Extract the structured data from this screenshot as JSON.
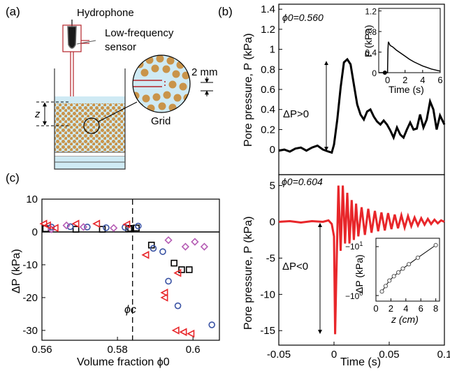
{
  "panel_labels": {
    "a": "(a)",
    "b": "(b)",
    "c": "(c)"
  },
  "schematic": {
    "hydrophone_label": "Hydrophone",
    "sensor_label_line1": "Low-frequency",
    "sensor_label_line2": "sensor",
    "grid_label": "Grid",
    "scale_label": "2 mm",
    "depth_label": "z"
  },
  "colors": {
    "black_trace": "#000000",
    "red_trace": "#e8262a",
    "grain": "#c9944a",
    "water": "#cfeaf4",
    "sensor_red": "#b3232a",
    "circle_blue": "#3a53a4",
    "diamond_purple": "#b55cb4",
    "triangle_red": "#e8262a"
  },
  "chart_data": [
    {
      "type": "line",
      "panel": "b-top",
      "annotation_phi": "ϕ0=0.560",
      "annotation_dp": "ΔP>0",
      "ylabel": "Pore pressure, P (kPa)",
      "ylim": [
        -0.25,
        1.45
      ],
      "xlim": [
        -0.05,
        0.1
      ],
      "yticks": [
        "1.4",
        "1.2",
        "1",
        "0.8",
        "0.6",
        "0.4",
        "0.2",
        "0"
      ],
      "series": [
        {
          "x": [
            -0.05,
            -0.045,
            -0.04,
            -0.035,
            -0.03,
            -0.025,
            -0.02,
            -0.015,
            -0.01,
            -0.005,
            -0.002,
            0.0,
            0.003,
            0.006,
            0.009,
            0.012,
            0.015,
            0.018,
            0.021,
            0.024,
            0.027,
            0.03,
            0.033,
            0.036,
            0.039,
            0.042,
            0.045,
            0.048,
            0.051,
            0.054,
            0.057,
            0.06,
            0.063,
            0.066,
            0.069,
            0.072,
            0.075,
            0.078,
            0.081,
            0.084,
            0.087,
            0.09,
            0.093,
            0.096,
            0.1
          ],
          "y": [
            -0.01,
            0.0,
            -0.02,
            0.01,
            0.02,
            -0.01,
            0.02,
            0.04,
            0.0,
            -0.02,
            -0.03,
            0.05,
            0.3,
            0.62,
            0.87,
            0.9,
            0.85,
            0.65,
            0.45,
            0.35,
            0.3,
            0.38,
            0.4,
            0.33,
            0.28,
            0.25,
            0.29,
            0.25,
            0.19,
            0.12,
            0.22,
            0.15,
            0.12,
            0.2,
            0.27,
            0.2,
            0.21,
            0.35,
            0.22,
            0.3,
            0.48,
            0.4,
            0.2,
            0.34,
            0.25
          ]
        }
      ],
      "inset": {
        "xlabel": "Time (s)",
        "ylabel": "P (kPa)",
        "xlim": [
          -1,
          6
        ],
        "ylim": [
          0,
          1.25
        ],
        "xticks": [
          "0",
          "2",
          "4",
          "6"
        ],
        "yticks": [
          "1.2",
          "0.8",
          "0.4",
          "0"
        ],
        "x": [
          -1,
          -0.5,
          0,
          0.05,
          0.1,
          0.3,
          0.6,
          1.0,
          1.5,
          2.0,
          2.5,
          3.0,
          3.5,
          4.0,
          4.5,
          5.0,
          5.5,
          6.0
        ],
        "y": [
          0.0,
          0.0,
          0.0,
          0.45,
          0.6,
          0.53,
          0.5,
          0.44,
          0.38,
          0.32,
          0.26,
          0.21,
          0.17,
          0.13,
          0.1,
          0.07,
          0.05,
          0.03
        ]
      }
    },
    {
      "type": "line",
      "panel": "b-bottom",
      "annotation_phi": "ϕ0=0.604",
      "annotation_dp": "ΔP<0",
      "ylabel": "Pore pressure, P (kPa)",
      "xlabel": "Time (s)",
      "ylim": [
        -17,
        6.5
      ],
      "xlim": [
        -0.05,
        0.1
      ],
      "yticks": [
        "5",
        "0",
        "-5",
        "-10",
        "-15"
      ],
      "xticks": [
        "-0.05",
        "0",
        "0.05",
        "0.1"
      ],
      "series": [
        {
          "x": [
            -0.05,
            -0.04,
            -0.03,
            -0.02,
            -0.01,
            -0.005,
            -0.002,
            0.0,
            0.001,
            0.002,
            0.004,
            0.006,
            0.008,
            0.01,
            0.012,
            0.014,
            0.016,
            0.018,
            0.02,
            0.022,
            0.025,
            0.028,
            0.031,
            0.034,
            0.037,
            0.04,
            0.043,
            0.046,
            0.049,
            0.052,
            0.055,
            0.058,
            0.061,
            0.064,
            0.067,
            0.07,
            0.073,
            0.076,
            0.079,
            0.082,
            0.085,
            0.088,
            0.091,
            0.094,
            0.097,
            0.1
          ],
          "y": [
            0.0,
            0.1,
            -0.1,
            0.1,
            0.0,
            0.2,
            -0.3,
            -2.0,
            -15.5,
            -8.0,
            5.0,
            -4.0,
            5.0,
            -3.0,
            4.0,
            -3.0,
            3.0,
            -2.5,
            2.5,
            -2.0,
            2.0,
            -1.8,
            1.8,
            -1.5,
            1.5,
            -1.3,
            1.3,
            -1.2,
            1.2,
            -1.0,
            1.0,
            -0.9,
            0.9,
            -0.8,
            0.8,
            -0.6,
            0.6,
            -0.5,
            0.5,
            -0.4,
            0.4,
            -0.3,
            0.3,
            -0.2,
            0.2,
            0.0
          ]
        }
      ],
      "inset": {
        "xlabel": "z (cm)",
        "ylabel": "ΔP (kPa)",
        "xticks": [
          "0",
          "2",
          "4",
          "6",
          "8"
        ],
        "ytick_top": "−10",
        "ytick_top_sup": "1",
        "ytick_bottom": "−10",
        "ytick_bottom_sup": "0",
        "xlim": [
          0,
          8.5
        ],
        "points": [
          [
            0.8,
            0.1
          ],
          [
            1.3,
            0.2
          ],
          [
            1.8,
            0.3
          ],
          [
            2.4,
            0.38
          ],
          [
            3.0,
            0.45
          ],
          [
            3.6,
            0.52
          ],
          [
            4.4,
            0.6
          ],
          [
            5.6,
            0.72
          ],
          [
            8.0,
            0.95
          ]
        ]
      }
    },
    {
      "type": "scatter",
      "panel": "c",
      "ylabel": "ΔP (kPa)",
      "xlabel": "Volume fraction ϕ0",
      "xlim": [
        0.56,
        0.607
      ],
      "ylim": [
        -33,
        10
      ],
      "xticks": [
        "0.56",
        "0.58",
        "0.6"
      ],
      "yticks": [
        "10",
        "0",
        "-10",
        "-20",
        "-30"
      ],
      "phi_c_label": "ϕc",
      "phi_c": 0.584,
      "series": [
        {
          "marker": "square",
          "points": [
            [
              0.561,
              1.0
            ],
            [
              0.569,
              0.8
            ],
            [
              0.576,
              0.8
            ],
            [
              0.583,
              0.9
            ],
            [
              0.5835,
              1.1
            ],
            [
              0.585,
              1.2
            ],
            [
              0.589,
              -4.0
            ],
            [
              0.595,
              -9.5
            ],
            [
              0.597,
              -11.5
            ],
            [
              0.599,
              -11.5
            ]
          ]
        },
        {
          "marker": "circle",
          "points": [
            [
              0.5625,
              1.5
            ],
            [
              0.5675,
              1.6
            ],
            [
              0.572,
              1.5
            ],
            [
              0.577,
              1.3
            ],
            [
              0.582,
              1.4
            ],
            [
              0.5855,
              1.8
            ],
            [
              0.5895,
              -5.0
            ],
            [
              0.592,
              -6.0
            ],
            [
              0.5935,
              -15.0
            ],
            [
              0.596,
              -22.5
            ],
            [
              0.605,
              -28.3
            ]
          ]
        },
        {
          "marker": "diamond",
          "points": [
            [
              0.5625,
              0.8
            ],
            [
              0.5665,
              2.0
            ],
            [
              0.571,
              1.5
            ],
            [
              0.579,
              1.2
            ],
            [
              0.5935,
              -2.5
            ],
            [
              0.598,
              -4.5
            ],
            [
              0.6005,
              -3.0
            ],
            [
              0.603,
              -4.5
            ]
          ]
        },
        {
          "marker": "triangle-left",
          "points": [
            [
              0.5605,
              2.5
            ],
            [
              0.5615,
              2.0
            ],
            [
              0.5635,
              1.2
            ],
            [
              0.569,
              2.5
            ],
            [
              0.5745,
              2.5
            ],
            [
              0.5825,
              2.3
            ],
            [
              0.5875,
              -7.0
            ],
            [
              0.5925,
              -20.0
            ],
            [
              0.5955,
              -30.0
            ],
            [
              0.5975,
              -30.5
            ],
            [
              0.5995,
              -31.0
            ],
            [
              0.596,
              -12.5
            ],
            [
              0.5925,
              -18.5
            ]
          ]
        }
      ]
    }
  ]
}
